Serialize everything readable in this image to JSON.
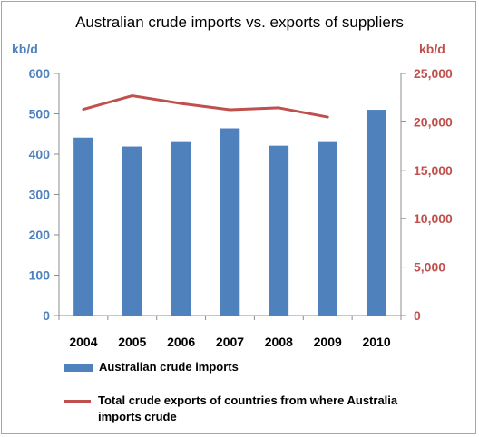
{
  "chart_data": {
    "type": "bar",
    "title": "Australian crude imports vs. exports of suppliers",
    "left_axis": {
      "label": "kb/d",
      "min": 0,
      "max": 600,
      "ticks": [
        "0",
        "100",
        "200",
        "300",
        "400",
        "500",
        "600"
      ],
      "color": "#4f81bd"
    },
    "right_axis": {
      "label": "kb/d",
      "min": 0,
      "max": 25000,
      "ticks": [
        "0",
        "5,000",
        "10,000",
        "15,000",
        "20,000",
        "25,000"
      ],
      "color": "#c0504d"
    },
    "categories": [
      "2004",
      "2005",
      "2006",
      "2007",
      "2008",
      "2009",
      "2010"
    ],
    "series": [
      {
        "name": "Australian crude imports",
        "type": "bar",
        "axis": "left",
        "color": "#4f81bd",
        "values": [
          441,
          419,
          430,
          464,
          421,
          430,
          510
        ]
      },
      {
        "name": "Total crude exports of countries from where Australia imports crude",
        "type": "line",
        "axis": "right",
        "color": "#c0504d",
        "values": [
          21300,
          22700,
          21900,
          21250,
          21450,
          20500,
          null
        ]
      }
    ],
    "gridlines": false,
    "legend_position": "bottom"
  }
}
